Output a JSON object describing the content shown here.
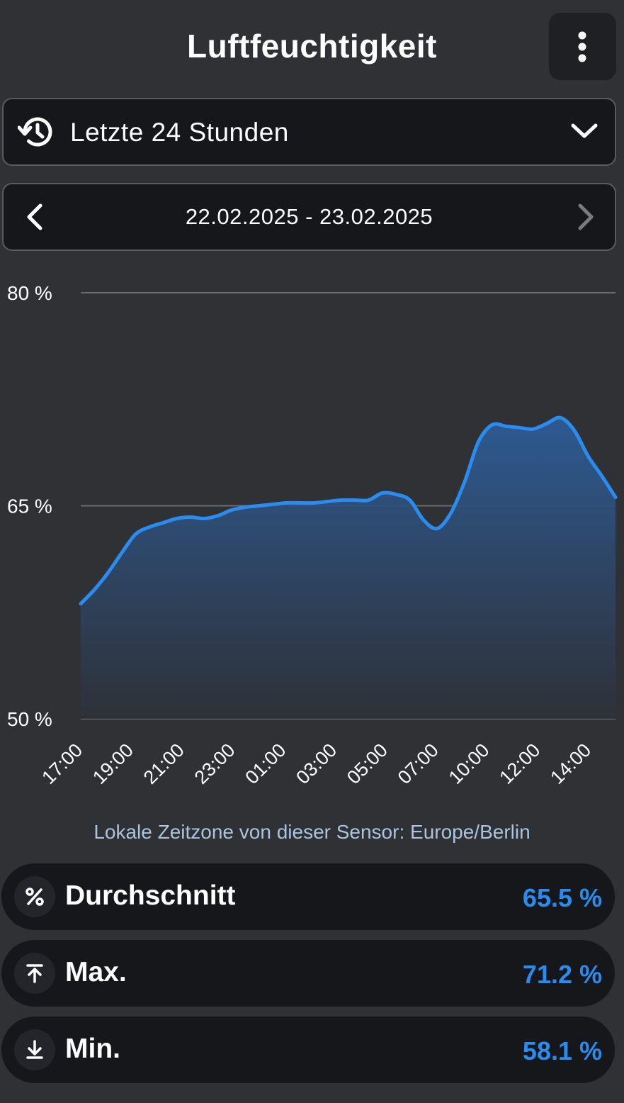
{
  "header": {
    "title": "Luftfeuchtigkeit",
    "menu_icon": "more-vertical-icon"
  },
  "range_select": {
    "label": "Letzte 24 Stunden",
    "icon": "history-icon",
    "dropdown_icon": "chevron-down-icon"
  },
  "date_nav": {
    "range": "22.02.2025 - 23.02.2025",
    "prev_icon": "chevron-left-icon",
    "next_icon": "chevron-right-icon"
  },
  "chart_data": {
    "type": "area",
    "title": "",
    "xlabel": "",
    "ylabel": "",
    "ylim": [
      50,
      80
    ],
    "y_ticks": [
      "80 %",
      "65 %",
      "50 %"
    ],
    "y_tick_values": [
      80,
      65,
      50
    ],
    "x_tick_labels": [
      "17:00",
      "19:00",
      "21:00",
      "23:00",
      "01:00",
      "03:00",
      "05:00",
      "07:00",
      "10:00",
      "12:00",
      "14:00"
    ],
    "grid": true,
    "color": "#2b8cf0",
    "series": [
      {
        "values": [
          58.1,
          59.1,
          60.3,
          61.7,
          63.0,
          63.5,
          63.8,
          64.1,
          64.2,
          64.1,
          64.3,
          64.7,
          64.9,
          65.0,
          65.1,
          65.2,
          65.2,
          65.2,
          65.3,
          65.4,
          65.4,
          65.4,
          65.9,
          65.8,
          65.4,
          64.0,
          63.4,
          64.5,
          66.7,
          69.5,
          70.7,
          70.6,
          70.5,
          70.4,
          70.8,
          71.2,
          70.3,
          68.5,
          67.1,
          65.6
        ]
      }
    ]
  },
  "timezone_note": "Lokale Zeitzone von dieser Sensor: Europe/Berlin",
  "stats": [
    {
      "label": "Durchschnitt",
      "value": "65.5 %",
      "icon": "percent-icon"
    },
    {
      "label": "Max.",
      "value": "71.2 %",
      "icon": "arrow-up-to-line-icon"
    },
    {
      "label": "Min.",
      "value": "58.1 %",
      "icon": "arrow-down-to-line-icon"
    }
  ]
}
